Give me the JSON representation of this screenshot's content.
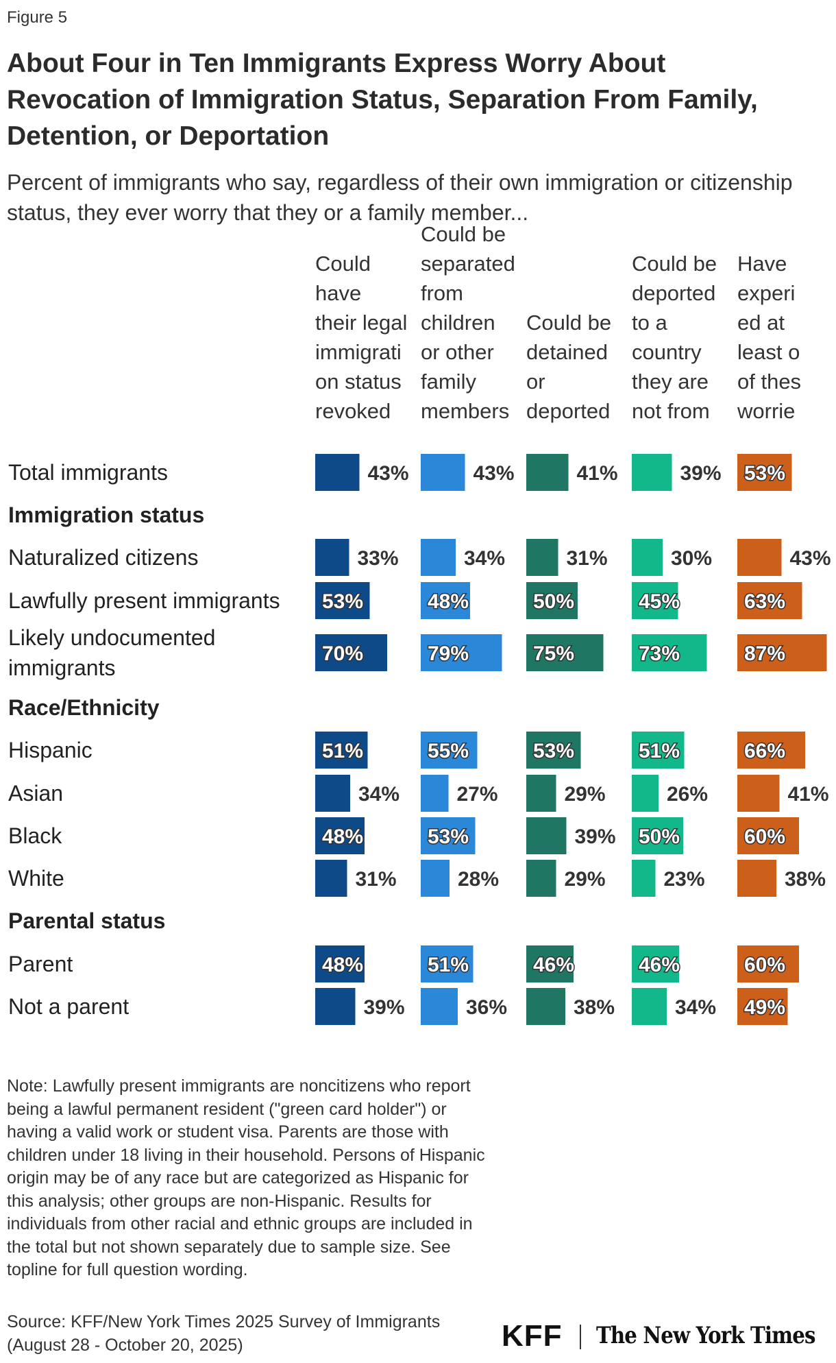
{
  "figure_label": "Figure 5",
  "title": "About Four in Ten Immigrants Express Worry About Revocation of Immigration Status, Separation From Family, Detention, or Deportation",
  "subtitle": "Percent of immigrants who say, regardless of their own immigration or citizenship status, they ever worry that they or a family member...",
  "chart_data": {
    "type": "bar",
    "orientation": "horizontal",
    "layout": "small-multiples",
    "columns": [
      {
        "name": "Could have their legal immigration status revoked",
        "header_lines": [
          "Could",
          "have",
          "their legal",
          "immigrati",
          "on status",
          "revoked"
        ],
        "color": "#0d4a87"
      },
      {
        "name": "Could be separated from children or other family members",
        "header_lines": [
          "Could be",
          "separated",
          "from",
          "children",
          "or other",
          "family",
          "members"
        ],
        "color": "#2b87d8"
      },
      {
        "name": "Could be detained or deported",
        "header_lines": [
          "Could be",
          "detained",
          "or",
          "deported"
        ],
        "color": "#1f7663"
      },
      {
        "name": "Could be deported to a country they are not from",
        "header_lines": [
          "Could be",
          "deported",
          "to a",
          "country",
          "they are",
          "not from"
        ],
        "color": "#13b88a"
      },
      {
        "name": "Have experienced at least one of these worries",
        "header_lines": [
          "Have",
          "experi",
          "ed at",
          "least o",
          "of thes",
          "worrie"
        ],
        "color": "#cc5f1a"
      }
    ],
    "rows": [
      {
        "kind": "row",
        "label": "Total immigrants",
        "values": [
          43,
          43,
          41,
          39,
          53
        ]
      },
      {
        "kind": "group",
        "label": "Immigration status"
      },
      {
        "kind": "row",
        "label": "Naturalized citizens",
        "values": [
          33,
          34,
          31,
          30,
          43
        ]
      },
      {
        "kind": "row",
        "label": "Lawfully present immigrants",
        "values": [
          53,
          48,
          50,
          45,
          63
        ]
      },
      {
        "kind": "row",
        "label": "Likely undocumented immigrants",
        "label_lines": [
          "Likely undocumented",
          "immigrants"
        ],
        "values": [
          70,
          79,
          75,
          73,
          87
        ]
      },
      {
        "kind": "group",
        "label": "Race/Ethnicity"
      },
      {
        "kind": "row",
        "label": "Hispanic",
        "values": [
          51,
          55,
          53,
          51,
          66
        ]
      },
      {
        "kind": "row",
        "label": "Asian",
        "values": [
          34,
          27,
          29,
          26,
          41
        ]
      },
      {
        "kind": "row",
        "label": "Black",
        "values": [
          48,
          53,
          39,
          50,
          60
        ]
      },
      {
        "kind": "row",
        "label": "White",
        "values": [
          31,
          28,
          29,
          23,
          38
        ]
      },
      {
        "kind": "group",
        "label": "Parental status"
      },
      {
        "kind": "row",
        "label": "Parent",
        "values": [
          48,
          51,
          46,
          46,
          60
        ]
      },
      {
        "kind": "row",
        "label": "Not a parent",
        "values": [
          39,
          36,
          38,
          34,
          49
        ]
      }
    ],
    "value_suffix": "%",
    "xlim": [
      0,
      100
    ],
    "legend": "none",
    "grid": false
  },
  "note": "Note: Lawfully present immigrants are noncitizens who report being a lawful permanent resident (\"green card holder\") or having a valid work or student visa. Parents are those with children under 18 living in their household. Persons of Hispanic origin may be of any race but are categorized as Hispanic for this analysis; other groups are non-Hispanic. Results for individuals from other racial and ethnic groups are included in the total but not shown separately due to sample size. See topline for full question wording.",
  "source": "Source: KFF/New York Times 2025 Survey of Immigrants (August 28 - October 20, 2025)",
  "logos": {
    "kff": "KFF",
    "nyt": "The New York Times"
  }
}
